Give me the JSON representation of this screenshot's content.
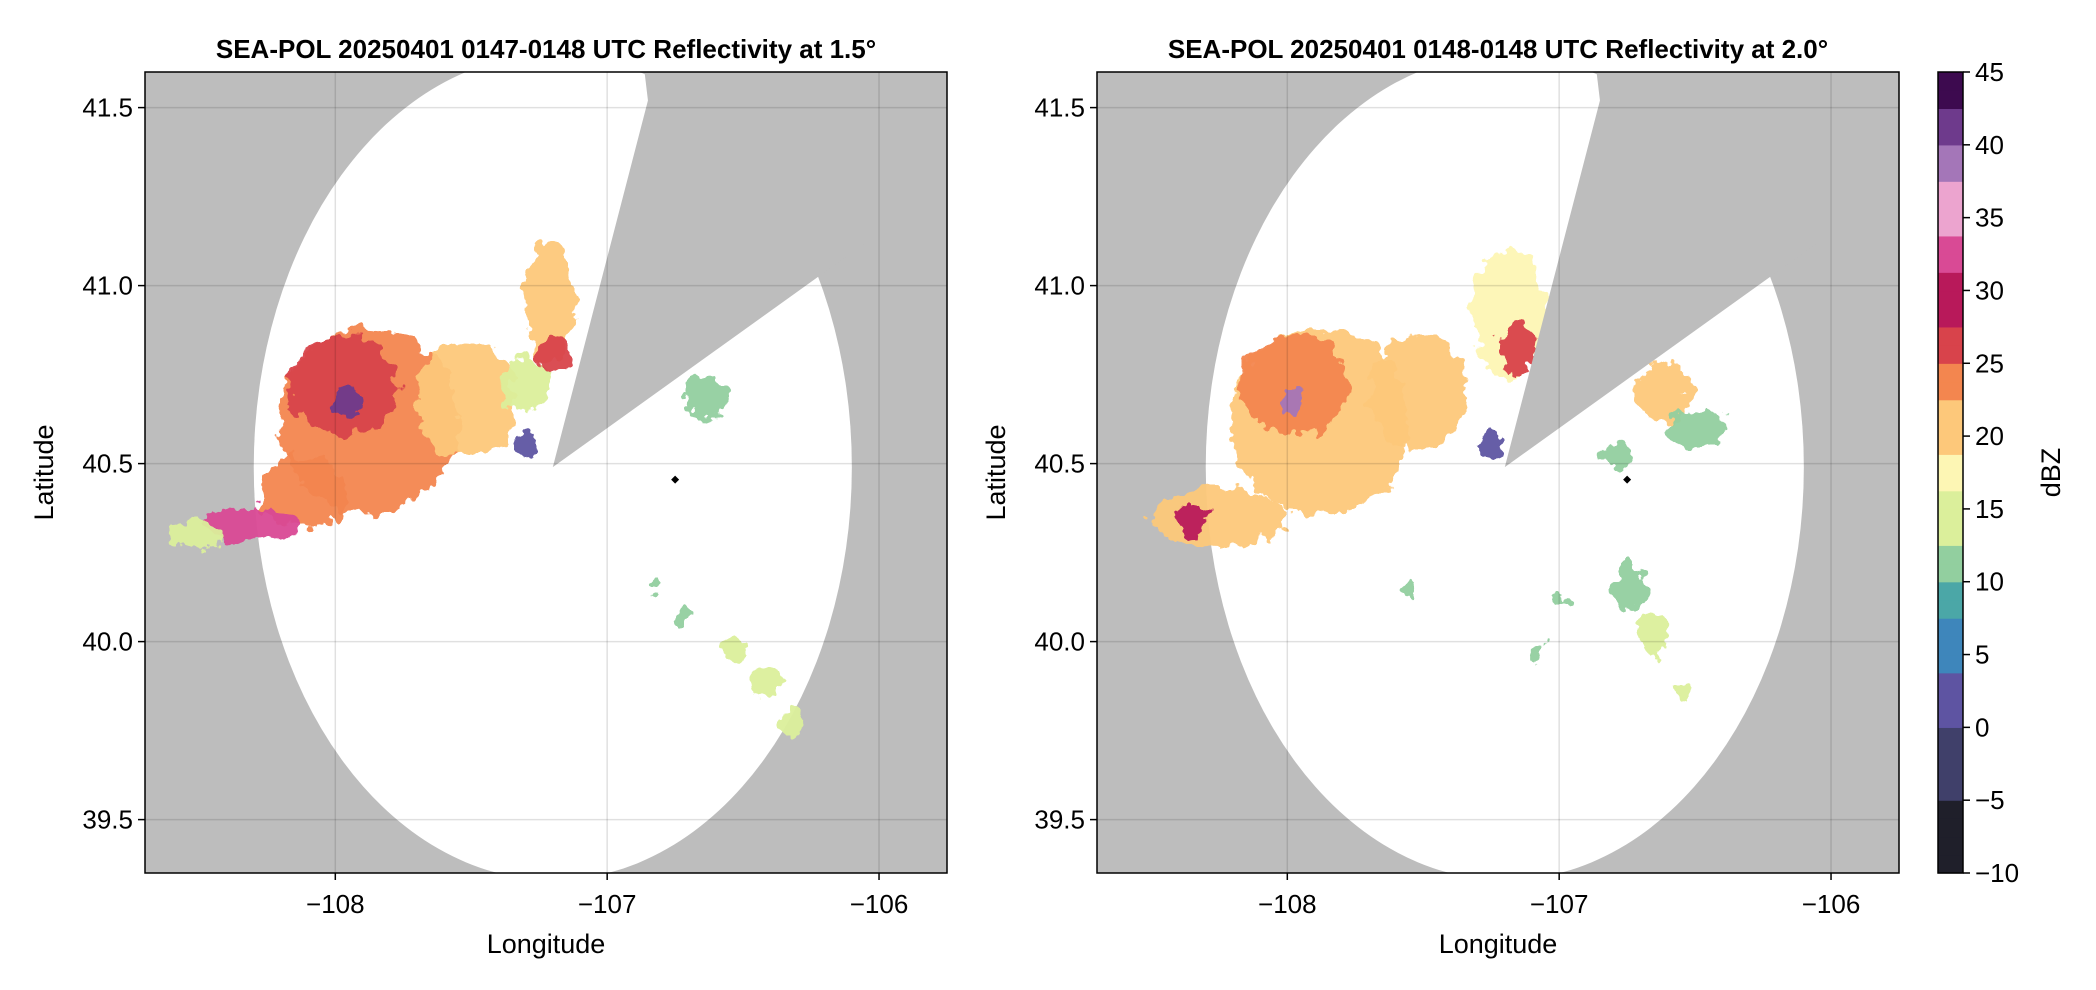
{
  "chart_data": [
    {
      "type": "heatmap",
      "title": "SEA-POL 20250401 0147-0148 UTC Reflectivity at 1.5°",
      "xlabel": "Longitude",
      "ylabel": "Latitude",
      "xlim": [
        -108.7,
        -105.75
      ],
      "ylim": [
        39.35,
        41.6
      ],
      "xticks": [
        -108,
        -107,
        -106
      ],
      "xtick_labels": [
        "−108",
        "−107",
        "−106"
      ],
      "yticks": [
        39.5,
        40.0,
        40.5,
        41.0,
        41.5
      ],
      "ytick_labels": [
        "39.5",
        "40.0",
        "40.5",
        "41.0",
        "41.5"
      ],
      "grid": true,
      "no_data_color": "#bdbdbd",
      "radar_site": {
        "lon": -107.2,
        "lat": 40.49
      },
      "scan_range_deg": [
        1.1,
        1.16
      ],
      "blocked_sector": [
        {
          "lon": -106.85,
          "lat": 41.52
        },
        {
          "lon": -106.05,
          "lat": 41.12
        }
      ],
      "marker": {
        "lon": -106.75,
        "lat": 40.455
      },
      "echoes": [
        {
          "lon": -107.88,
          "lat": 40.62,
          "rlon": 0.33,
          "rlat": 0.26,
          "dbz": 23
        },
        {
          "lon": -107.97,
          "lat": 40.72,
          "rlon": 0.2,
          "rlat": 0.14,
          "dbz": 26
        },
        {
          "lon": -107.95,
          "lat": 40.67,
          "rlon": 0.05,
          "rlat": 0.05,
          "dbz": 41
        },
        {
          "lon": -107.52,
          "lat": 40.68,
          "rlon": 0.18,
          "rlat": 0.17,
          "dbz": 21
        },
        {
          "lon": -107.3,
          "lat": 40.72,
          "rlon": 0.09,
          "rlat": 0.08,
          "dbz": 15
        },
        {
          "lon": -108.12,
          "lat": 40.42,
          "rlon": 0.16,
          "rlat": 0.1,
          "dbz": 23
        },
        {
          "lon": -108.3,
          "lat": 40.33,
          "rlon": 0.18,
          "rlat": 0.05,
          "dbz": 32
        },
        {
          "lon": -108.5,
          "lat": 40.3,
          "rlon": 0.1,
          "rlat": 0.04,
          "dbz": 16
        },
        {
          "lon": -107.21,
          "lat": 40.96,
          "rlon": 0.09,
          "rlat": 0.17,
          "dbz": 22
        },
        {
          "lon": -107.19,
          "lat": 40.8,
          "rlon": 0.06,
          "rlat": 0.06,
          "dbz": 27
        },
        {
          "lon": -106.64,
          "lat": 40.68,
          "rlon": 0.08,
          "rlat": 0.06,
          "dbz": 13
        },
        {
          "lon": -107.3,
          "lat": 40.55,
          "rlon": 0.05,
          "rlat": 0.04,
          "dbz": 4
        },
        {
          "lon": -106.54,
          "lat": 39.98,
          "rlon": 0.04,
          "rlat": 0.03,
          "dbz": 16
        },
        {
          "lon": -106.41,
          "lat": 39.88,
          "rlon": 0.06,
          "rlat": 0.04,
          "dbz": 16
        },
        {
          "lon": -106.32,
          "lat": 39.77,
          "rlon": 0.04,
          "rlat": 0.04,
          "dbz": 16
        },
        {
          "lon": -106.82,
          "lat": 40.15,
          "rlon": 0.03,
          "rlat": 0.02,
          "dbz": 11
        },
        {
          "lon": -106.72,
          "lat": 40.07,
          "rlon": 0.03,
          "rlat": 0.02,
          "dbz": 12
        }
      ]
    },
    {
      "type": "heatmap",
      "title": "SEA-POL 20250401 0148-0148 UTC Reflectivity at 2.0°",
      "xlabel": "Longitude",
      "ylabel": "Latitude",
      "xlim": [
        -108.7,
        -105.75
      ],
      "ylim": [
        39.35,
        41.6
      ],
      "xticks": [
        -108,
        -107,
        -106
      ],
      "xtick_labels": [
        "−108",
        "−107",
        "−106"
      ],
      "yticks": [
        39.5,
        40.0,
        40.5,
        41.0,
        41.5
      ],
      "ytick_labels": [
        "39.5",
        "40.0",
        "40.5",
        "41.0",
        "41.5"
      ],
      "grid": true,
      "no_data_color": "#bdbdbd",
      "radar_site": {
        "lon": -107.2,
        "lat": 40.49
      },
      "scan_range_deg": [
        1.1,
        1.16
      ],
      "blocked_sector": [
        {
          "lon": -106.85,
          "lat": 41.52
        },
        {
          "lon": -106.05,
          "lat": 41.12
        }
      ],
      "marker": {
        "lon": -106.75,
        "lat": 40.455
      },
      "echoes": [
        {
          "lon": -107.88,
          "lat": 40.62,
          "rlon": 0.33,
          "rlat": 0.26,
          "dbz": 22
        },
        {
          "lon": -107.97,
          "lat": 40.72,
          "rlon": 0.2,
          "rlat": 0.14,
          "dbz": 25
        },
        {
          "lon": -107.98,
          "lat": 40.67,
          "rlon": 0.04,
          "rlat": 0.04,
          "dbz": 38
        },
        {
          "lon": -107.52,
          "lat": 40.7,
          "rlon": 0.18,
          "rlat": 0.16,
          "dbz": 20
        },
        {
          "lon": -108.25,
          "lat": 40.35,
          "rlon": 0.25,
          "rlat": 0.08,
          "dbz": 22
        },
        {
          "lon": -108.35,
          "lat": 40.34,
          "rlon": 0.06,
          "rlat": 0.04,
          "dbz": 30
        },
        {
          "lon": -107.18,
          "lat": 40.92,
          "rlon": 0.14,
          "rlat": 0.18,
          "dbz": 18
        },
        {
          "lon": -107.15,
          "lat": 40.82,
          "rlon": 0.07,
          "rlat": 0.07,
          "dbz": 27
        },
        {
          "lon": -106.62,
          "lat": 40.7,
          "rlon": 0.1,
          "rlat": 0.08,
          "dbz": 22
        },
        {
          "lon": -106.5,
          "lat": 40.6,
          "rlon": 0.12,
          "rlat": 0.05,
          "dbz": 13
        },
        {
          "lon": -106.8,
          "lat": 40.52,
          "rlon": 0.06,
          "rlat": 0.03,
          "dbz": 11
        },
        {
          "lon": -107.25,
          "lat": 40.55,
          "rlon": 0.04,
          "rlat": 0.04,
          "dbz": 3
        },
        {
          "lon": -106.74,
          "lat": 40.15,
          "rlon": 0.06,
          "rlat": 0.06,
          "dbz": 13
        },
        {
          "lon": -106.65,
          "lat": 40.02,
          "rlon": 0.05,
          "rlat": 0.06,
          "dbz": 14
        },
        {
          "lon": -106.55,
          "lat": 39.85,
          "rlon": 0.03,
          "rlat": 0.02,
          "dbz": 15
        },
        {
          "lon": -107.08,
          "lat": 39.97,
          "rlon": 0.03,
          "rlat": 0.03,
          "dbz": 12
        },
        {
          "lon": -107.0,
          "lat": 40.12,
          "rlon": 0.03,
          "rlat": 0.02,
          "dbz": 11
        },
        {
          "lon": -107.55,
          "lat": 40.15,
          "rlon": 0.02,
          "rlat": 0.02,
          "dbz": 12
        }
      ]
    }
  ],
  "colorbar": {
    "label": "dBZ",
    "min": -10,
    "max": 45,
    "ticks": [
      -10,
      -5,
      0,
      5,
      10,
      15,
      20,
      25,
      30,
      35,
      40,
      45
    ],
    "tick_labels": [
      "−10",
      "−5",
      "0",
      "5",
      "10",
      "15",
      "20",
      "25",
      "30",
      "35",
      "40",
      "45"
    ],
    "colors": [
      {
        "v": -10,
        "c": "#000000"
      },
      {
        "v": -5,
        "c": "#1f1f2a"
      },
      {
        "v": 0,
        "c": "#40406a"
      },
      {
        "v": 4,
        "c": "#5e54a2"
      },
      {
        "v": 7,
        "c": "#3e86bb"
      },
      {
        "v": 10,
        "c": "#4ba7a7"
      },
      {
        "v": 13,
        "c": "#92cf9f"
      },
      {
        "v": 16,
        "c": "#dbef9b"
      },
      {
        "v": 19,
        "c": "#fdf6b4"
      },
      {
        "v": 22,
        "c": "#fdc87a"
      },
      {
        "v": 25,
        "c": "#f3864f"
      },
      {
        "v": 28,
        "c": "#d8434b"
      },
      {
        "v": 31,
        "c": "#b8195a"
      },
      {
        "v": 34,
        "c": "#d94a95"
      },
      {
        "v": 37,
        "c": "#eca4cf"
      },
      {
        "v": 40,
        "c": "#a476b8"
      },
      {
        "v": 42.5,
        "c": "#6e3a8c"
      },
      {
        "v": 45,
        "c": "#3d0a4f"
      }
    ]
  }
}
